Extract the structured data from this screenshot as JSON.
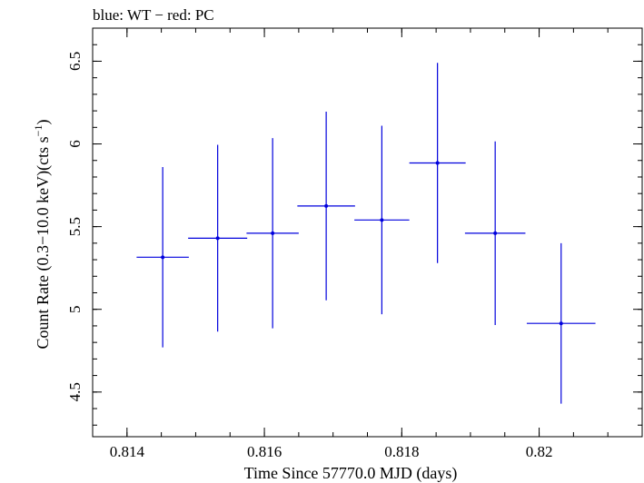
{
  "chart_data": {
    "type": "scatter",
    "title": "blue: WT − red: PC",
    "xlabel": "Time Since 57770.0 MJD (days)",
    "ylabel_main": "Count Rate (0.3−10.0 keV)(cts s",
    "ylabel_sup": "−1",
    "ylabel_end": ")",
    "xlim": [
      0.8135,
      0.8215
    ],
    "ylim": [
      4.23,
      6.7
    ],
    "x_ticks": [
      {
        "value": 0.814,
        "label": "0.814"
      },
      {
        "value": 0.816,
        "label": "0.816"
      },
      {
        "value": 0.818,
        "label": "0.818"
      },
      {
        "value": 0.82,
        "label": "0.82"
      }
    ],
    "x_minor_step": 0.0005,
    "y_ticks": [
      {
        "value": 4.5,
        "label": "4.5"
      },
      {
        "value": 5.0,
        "label": "5"
      },
      {
        "value": 5.5,
        "label": "5.5"
      },
      {
        "value": 6.0,
        "label": "6"
      },
      {
        "value": 6.5,
        "label": "6.5"
      }
    ],
    "y_minor_step": 0.1,
    "grid": false,
    "series": [
      {
        "color": "#0000dd",
        "points": [
          {
            "x": 0.81452,
            "xerr": 0.00038,
            "y": 5.315,
            "yerr_low": 0.545,
            "yerr_high": 0.545
          },
          {
            "x": 0.81532,
            "xerr": 0.00043,
            "y": 5.43,
            "yerr_low": 0.565,
            "yerr_high": 0.565
          },
          {
            "x": 0.81612,
            "xerr": 0.00038,
            "y": 5.46,
            "yerr_low": 0.575,
            "yerr_high": 0.575
          },
          {
            "x": 0.8169,
            "xerr": 0.00042,
            "y": 5.625,
            "yerr_low": 0.57,
            "yerr_high": 0.57
          },
          {
            "x": 0.81771,
            "xerr": 0.0004,
            "y": 5.54,
            "yerr_low": 0.57,
            "yerr_high": 0.57
          },
          {
            "x": 0.81852,
            "xerr": 0.00041,
            "y": 5.885,
            "yerr_low": 0.605,
            "yerr_high": 0.605
          },
          {
            "x": 0.81936,
            "xerr": 0.00044,
            "y": 5.46,
            "yerr_low": 0.555,
            "yerr_high": 0.555
          },
          {
            "x": 0.82032,
            "xerr": 0.0005,
            "y": 4.915,
            "yerr_low": 0.485,
            "yerr_high": 0.485
          }
        ]
      }
    ]
  }
}
